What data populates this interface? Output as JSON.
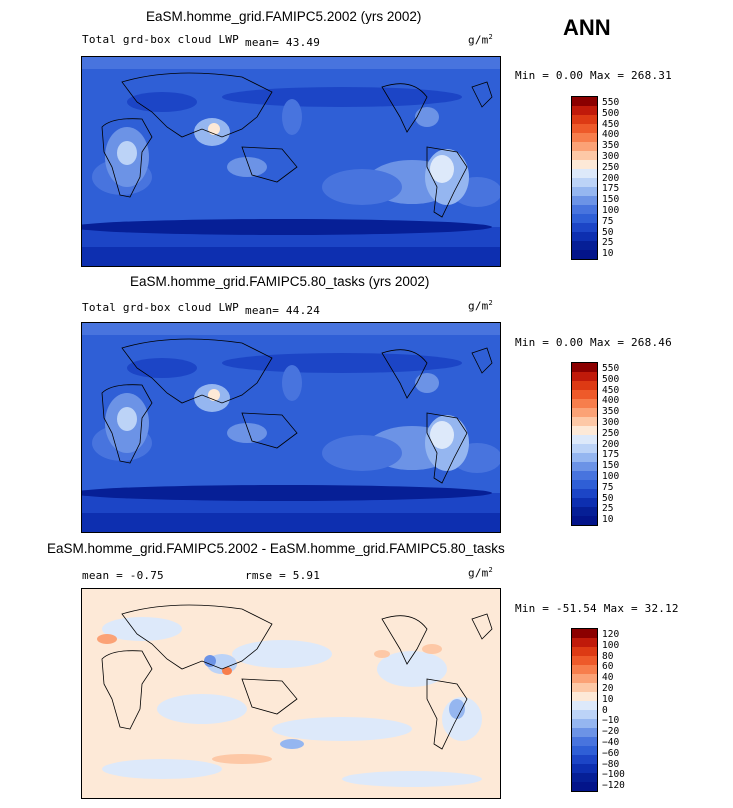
{
  "season": "ANN",
  "panels": [
    {
      "title": "EaSM.homme_grid.FAMIPC5.2002 (yrs 2002)",
      "variable": "Total grd-box cloud LWP",
      "stat1": "mean=  43.49",
      "stat2": "",
      "units_base": "g/m",
      "units_exp": "2",
      "minmax": "Min =   0.00 Max = 268.31",
      "colorbar": {
        "colors": [
          "#8b0000",
          "#c01a0a",
          "#dd3a14",
          "#ee5a2a",
          "#f77e4c",
          "#fba276",
          "#fdc8a6",
          "#fde9d7",
          "#dde9fa",
          "#bcd3f7",
          "#95b6f0",
          "#6c93e6",
          "#4874de",
          "#2f5fd6",
          "#1c45c6",
          "#0d2fb0",
          "#061f96",
          "#03148a"
        ],
        "labels": [
          "550",
          "500",
          "450",
          "400",
          "350",
          "300",
          "250",
          "200",
          "175",
          "150",
          "100",
          "75",
          "50",
          "25",
          "10"
        ]
      }
    },
    {
      "title": "EaSM.homme_grid.FAMIPC5.80_tasks (yrs 2002)",
      "variable": "Total grd-box cloud LWP",
      "stat1": "mean=  44.24",
      "stat2": "",
      "units_base": "g/m",
      "units_exp": "2",
      "minmax": "Min =   0.00 Max = 268.46",
      "colorbar": {
        "colors": [
          "#8b0000",
          "#c01a0a",
          "#dd3a14",
          "#ee5a2a",
          "#f77e4c",
          "#fba276",
          "#fdc8a6",
          "#fde9d7",
          "#dde9fa",
          "#bcd3f7",
          "#95b6f0",
          "#6c93e6",
          "#4874de",
          "#2f5fd6",
          "#1c45c6",
          "#0d2fb0",
          "#061f96",
          "#03148a"
        ],
        "labels": [
          "550",
          "500",
          "450",
          "400",
          "350",
          "300",
          "250",
          "200",
          "175",
          "150",
          "100",
          "75",
          "50",
          "25",
          "10"
        ]
      }
    },
    {
      "title": "EaSM.homme_grid.FAMIPC5.2002 - EaSM.homme_grid.FAMIPC5.80_tasks",
      "variable": "",
      "stat1": "mean =  -0.75",
      "stat2": "rmse =   5.91",
      "units_base": "g/m",
      "units_exp": "2",
      "minmax": "Min = -51.54 Max =  32.12",
      "colorbar": {
        "colors": [
          "#8b0000",
          "#c01a0a",
          "#dd3a14",
          "#ee5a2a",
          "#f77e4c",
          "#fba276",
          "#fdc8a6",
          "#fde9d7",
          "#dde9fa",
          "#bcd3f7",
          "#95b6f0",
          "#6c93e6",
          "#4874de",
          "#2f5fd6",
          "#1c45c6",
          "#0d2fb0",
          "#061f96",
          "#03148a"
        ],
        "labels": [
          "120",
          "100",
          "80",
          "60",
          "40",
          "20",
          "10",
          "0",
          "−10",
          "−20",
          "−40",
          "−60",
          "−80",
          "−100",
          "−120"
        ]
      }
    }
  ],
  "chart_data": [
    {
      "type": "heatmap",
      "title": "EaSM.homme_grid.FAMIPC5.2002 (yrs 2002)",
      "variable": "Total grd-box cloud LWP",
      "units": "g/m^2",
      "mean": 43.49,
      "min": 0.0,
      "max": 268.31,
      "levels": [
        10,
        25,
        50,
        75,
        100,
        150,
        175,
        200,
        250,
        300,
        350,
        400,
        450,
        500,
        550
      ]
    },
    {
      "type": "heatmap",
      "title": "EaSM.homme_grid.FAMIPC5.80_tasks (yrs 2002)",
      "variable": "Total grd-box cloud LWP",
      "units": "g/m^2",
      "mean": 44.24,
      "min": 0.0,
      "max": 268.46,
      "levels": [
        10,
        25,
        50,
        75,
        100,
        150,
        175,
        200,
        250,
        300,
        350,
        400,
        450,
        500,
        550
      ]
    },
    {
      "type": "heatmap",
      "title": "EaSM.homme_grid.FAMIPC5.2002 - EaSM.homme_grid.FAMIPC5.80_tasks",
      "units": "g/m^2",
      "mean": -0.75,
      "rmse": 5.91,
      "min": -51.54,
      "max": 32.12,
      "levels": [
        -120,
        -100,
        -80,
        -60,
        -40,
        -20,
        -10,
        0,
        10,
        20,
        40,
        60,
        80,
        100,
        120
      ]
    }
  ]
}
